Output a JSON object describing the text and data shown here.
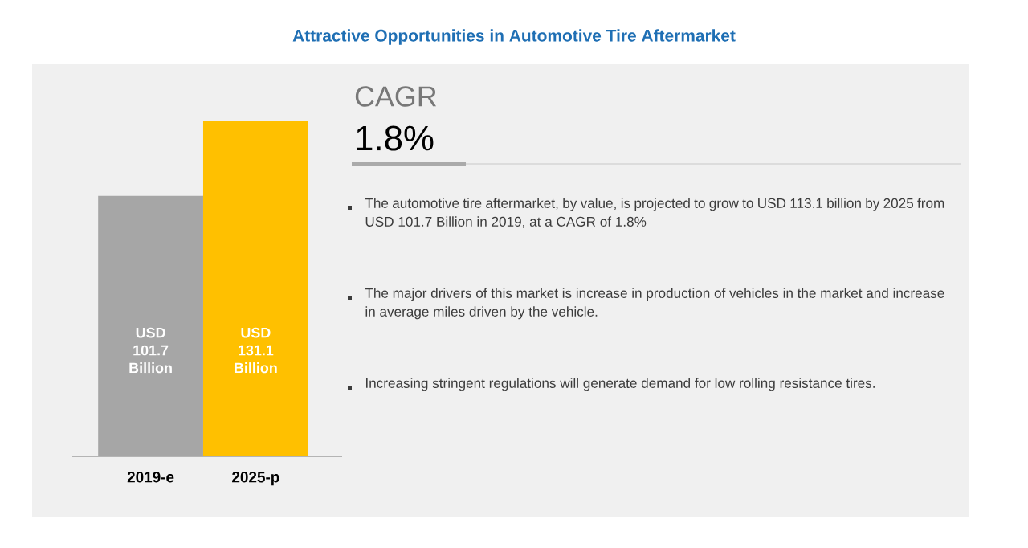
{
  "chart_data": {
    "type": "bar",
    "title": "Attractive Opportunities in Automotive Tire Aftermarket",
    "categories": [
      "2019-e",
      "2025-p"
    ],
    "values": [
      101.7,
      131.1
    ],
    "colors": [
      "#a6a6a6",
      "#ffc000"
    ],
    "value_labels": [
      "USD 101.7 Billion",
      "USD 131.1 Billion"
    ],
    "annotations": [
      "CAGR",
      "1.8%",
      "The automotive tire aftermarket, by value, is projected to grow to USD 113.1 billion by 2025 from USD 101.7 Billion in 2019, at a CAGR of 1.8%",
      "The major drivers of this market is increase in production of vehicles in the market and increase in average miles driven by the vehicle.",
      "Increasing stringent regulations will generate demand for low rolling resistance tires."
    ]
  }
}
